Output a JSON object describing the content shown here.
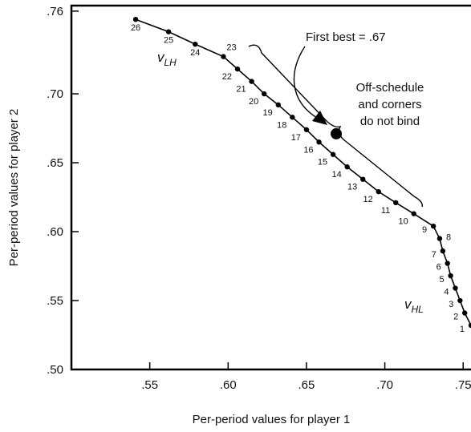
{
  "chart_data": {
    "type": "line",
    "xlabel": "Per-period values for player 1",
    "ylabel": "Per-period values for player 2",
    "xlim": [
      0.5,
      0.755
    ],
    "ylim": [
      0.5,
      0.764
    ],
    "x_ticks": [
      ".55",
      ".60",
      ".65",
      ".70",
      ".75"
    ],
    "x_tick_values": [
      0.55,
      0.6,
      0.65,
      0.7,
      0.75
    ],
    "y_ticks": [
      ".50",
      ".55",
      ".60",
      ".65",
      ".70",
      ".76"
    ],
    "y_tick_values": [
      0.5,
      0.55,
      0.6,
      0.65,
      0.7,
      0.76
    ],
    "grid": false,
    "series": [
      {
        "labels": [
          "1",
          "2",
          "3",
          "4",
          "5",
          "6",
          "7",
          "8",
          "9",
          "10",
          "11",
          "12",
          "13",
          "14",
          "15",
          "16",
          "17",
          "18",
          "19",
          "20",
          "21",
          "22",
          "23",
          "24",
          "25",
          "26"
        ],
        "x": [
          0.755,
          0.751,
          0.748,
          0.745,
          0.742,
          0.74,
          0.737,
          0.735,
          0.731,
          0.7185,
          0.707,
          0.696,
          0.686,
          0.676,
          0.667,
          0.658,
          0.65,
          0.641,
          0.632,
          0.623,
          0.615,
          0.606,
          0.597,
          0.579,
          0.562,
          0.541
        ],
        "y": [
          0.532,
          0.541,
          0.55,
          0.559,
          0.568,
          0.577,
          0.586,
          0.595,
          0.604,
          0.613,
          0.621,
          0.629,
          0.638,
          0.647,
          0.656,
          0.665,
          0.674,
          0.683,
          0.692,
          0.7,
          0.709,
          0.718,
          0.727,
          0.736,
          0.745,
          0.754
        ]
      }
    ],
    "first_best": {
      "x": 0.669,
      "y": 0.671
    },
    "annotations": {
      "first_best_label": "First best = .67",
      "bracket_note": [
        "Off-schedule",
        "and corners",
        "do not bind"
      ],
      "curve_lh": "v",
      "curve_lh_sub": "LH",
      "curve_hl": "v",
      "curve_hl_sub": "HL"
    }
  }
}
